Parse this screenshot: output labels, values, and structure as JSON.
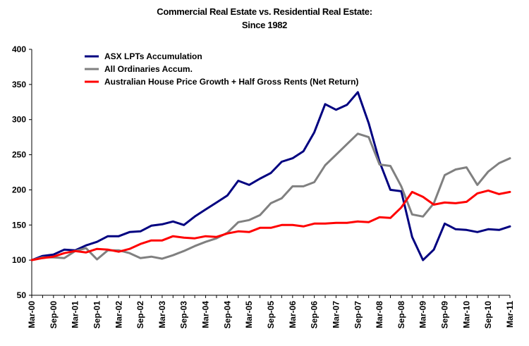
{
  "chart_data": {
    "type": "line",
    "title": "Commercial Real Estate vs. Residential Real Estate:",
    "subtitle": "Since 1982",
    "xlabel": "",
    "ylabel": "",
    "ylim": [
      50,
      400
    ],
    "yticks": [
      50,
      100,
      150,
      200,
      250,
      300,
      350,
      400
    ],
    "x_tick_labels": [
      "Mar-00",
      "Sep-00",
      "Mar-01",
      "Sep-01",
      "Mar-02",
      "Sep-02",
      "Mar-03",
      "Sep-03",
      "Mar-04",
      "Sep-04",
      "Mar-05",
      "Sep-05",
      "Mar-06",
      "Sep-06",
      "Mar-07",
      "Sep-07",
      "Mar-08",
      "Sep-08",
      "Mar-09",
      "Sep-09",
      "Mar-10",
      "Sep-10",
      "Mar-11"
    ],
    "grid": false,
    "legend_position": "top-left",
    "x": [
      "Mar-00",
      "Jun-00",
      "Sep-00",
      "Dec-00",
      "Mar-01",
      "Jun-01",
      "Sep-01",
      "Dec-01",
      "Mar-02",
      "Jun-02",
      "Sep-02",
      "Dec-02",
      "Mar-03",
      "Jun-03",
      "Sep-03",
      "Dec-03",
      "Mar-04",
      "Jun-04",
      "Sep-04",
      "Dec-04",
      "Mar-05",
      "Jun-05",
      "Sep-05",
      "Dec-05",
      "Mar-06",
      "Jun-06",
      "Sep-06",
      "Dec-06",
      "Mar-07",
      "Jun-07",
      "Sep-07",
      "Dec-07",
      "Mar-08",
      "Jun-08",
      "Sep-08",
      "Dec-08",
      "Mar-09",
      "Jun-09",
      "Sep-09",
      "Dec-09",
      "Mar-10",
      "Jun-10",
      "Sep-10",
      "Dec-10",
      "Mar-11"
    ],
    "series": [
      {
        "name": "ASX LPTs Accumulation",
        "color": "#000080",
        "values": [
          100,
          106,
          108,
          115,
          114,
          121,
          126,
          134,
          134,
          140,
          141,
          149,
          151,
          155,
          150,
          162,
          172,
          182,
          192,
          213,
          207,
          216,
          224,
          240,
          245,
          255,
          282,
          322,
          314,
          321,
          339,
          295,
          240,
          200,
          198,
          133,
          100,
          115,
          152,
          144,
          143,
          140,
          144,
          143,
          148
        ]
      },
      {
        "name": "All Ordinaries Accum.",
        "color": "#808080",
        "values": [
          100,
          104,
          104,
          103,
          113,
          117,
          101,
          114,
          114,
          110,
          103,
          105,
          102,
          107,
          113,
          120,
          126,
          131,
          139,
          154,
          157,
          164,
          181,
          188,
          205,
          205,
          211,
          235,
          250,
          265,
          280,
          275,
          236,
          234,
          205,
          165,
          162,
          181,
          221,
          229,
          232,
          207,
          226,
          238,
          245
        ]
      },
      {
        "name": "Australian House Price Growth + Half Gross Rents (Net Return)",
        "color": "#ff0000",
        "values": [
          100,
          103,
          105,
          110,
          113,
          111,
          116,
          115,
          112,
          116,
          123,
          128,
          128,
          134,
          132,
          131,
          134,
          133,
          138,
          141,
          140,
          146,
          146,
          150,
          150,
          148,
          152,
          152,
          153,
          153,
          155,
          154,
          161,
          160,
          175,
          197,
          190,
          179,
          182,
          181,
          183,
          195,
          199,
          194,
          197
        ]
      }
    ]
  }
}
